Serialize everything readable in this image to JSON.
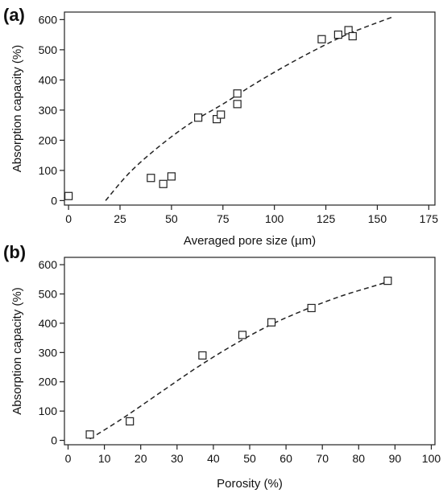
{
  "chart_data": [
    {
      "type": "scatter",
      "panel_label": "(a)",
      "title": "",
      "xlabel": "Averaged pore size (µm)",
      "ylabel": "Absorption capacity (%)",
      "xlim": [
        -2,
        178
      ],
      "ylim": [
        -15,
        625
      ],
      "xticks": [
        0,
        25,
        50,
        75,
        100,
        125,
        150,
        175
      ],
      "yticks": [
        0,
        100,
        200,
        300,
        400,
        500,
        600
      ],
      "grid": false,
      "legend": "none",
      "series": [
        {
          "marker": "open-square",
          "points": [
            {
              "x": 0,
              "y": 15
            },
            {
              "x": 40,
              "y": 75
            },
            {
              "x": 46,
              "y": 55
            },
            {
              "x": 50,
              "y": 80
            },
            {
              "x": 63,
              "y": 275
            },
            {
              "x": 72,
              "y": 270
            },
            {
              "x": 74,
              "y": 285
            },
            {
              "x": 82,
              "y": 355
            },
            {
              "x": 82,
              "y": 320
            },
            {
              "x": 123,
              "y": 535
            },
            {
              "x": 131,
              "y": 550
            },
            {
              "x": 136,
              "y": 565
            },
            {
              "x": 138,
              "y": 545
            }
          ]
        }
      ],
      "fit_curve": {
        "style": "dashed",
        "points": [
          {
            "x": 18,
            "y": 0
          },
          {
            "x": 30,
            "y": 95
          },
          {
            "x": 45,
            "y": 185
          },
          {
            "x": 60,
            "y": 260
          },
          {
            "x": 75,
            "y": 320
          },
          {
            "x": 90,
            "y": 385
          },
          {
            "x": 105,
            "y": 445
          },
          {
            "x": 120,
            "y": 500
          },
          {
            "x": 135,
            "y": 550
          },
          {
            "x": 150,
            "y": 590
          },
          {
            "x": 158,
            "y": 610
          }
        ]
      }
    },
    {
      "type": "scatter",
      "panel_label": "(b)",
      "title": "",
      "xlabel": "Porosity (%)",
      "ylabel": "Absorption capacity (%)",
      "xlim": [
        -1,
        101
      ],
      "ylim": [
        -15,
        625
      ],
      "xticks": [
        0,
        10,
        20,
        30,
        40,
        50,
        60,
        70,
        80,
        90,
        100
      ],
      "yticks": [
        0,
        100,
        200,
        300,
        400,
        500,
        600
      ],
      "grid": false,
      "legend": "none",
      "series": [
        {
          "marker": "open-square",
          "points": [
            {
              "x": 6,
              "y": 20
            },
            {
              "x": 17,
              "y": 65
            },
            {
              "x": 37,
              "y": 290
            },
            {
              "x": 48,
              "y": 360
            },
            {
              "x": 56,
              "y": 403
            },
            {
              "x": 67,
              "y": 452
            },
            {
              "x": 88,
              "y": 545
            }
          ]
        }
      ],
      "fit_curve": {
        "style": "dashed",
        "points": [
          {
            "x": 6,
            "y": 5
          },
          {
            "x": 15,
            "y": 75
          },
          {
            "x": 25,
            "y": 160
          },
          {
            "x": 35,
            "y": 245
          },
          {
            "x": 45,
            "y": 322
          },
          {
            "x": 55,
            "y": 390
          },
          {
            "x": 65,
            "y": 445
          },
          {
            "x": 75,
            "y": 492
          },
          {
            "x": 85,
            "y": 530
          },
          {
            "x": 89,
            "y": 545
          }
        ]
      }
    }
  ]
}
